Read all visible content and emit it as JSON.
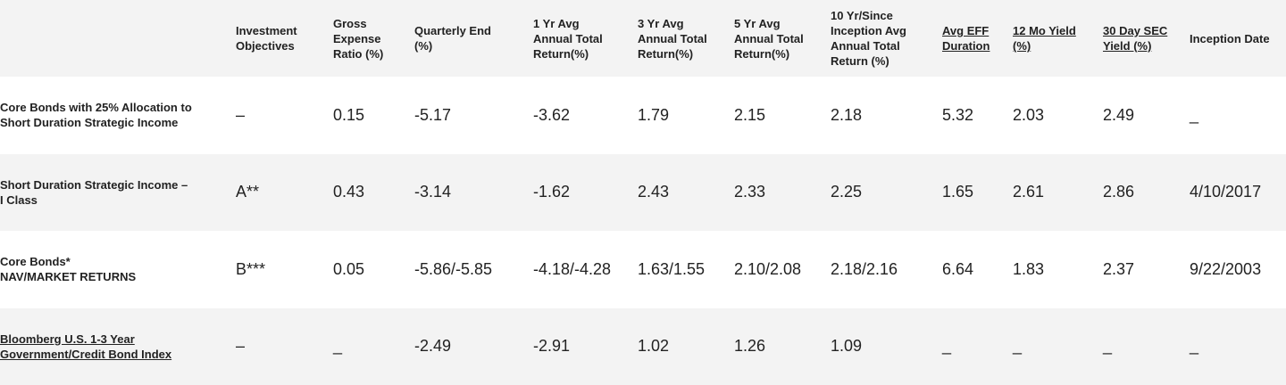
{
  "columns": [
    {
      "label_lines": [
        "Investment",
        "Objectives"
      ],
      "underline": false
    },
    {
      "label_lines": [
        "Gross",
        "Expense",
        "Ratio (%)"
      ],
      "underline": false
    },
    {
      "label_lines": [
        "Quarterly End",
        "(%)"
      ],
      "underline": false
    },
    {
      "label_lines": [
        "1 Yr Avg",
        "Annual Total",
        "Return(%)"
      ],
      "underline": false
    },
    {
      "label_lines": [
        "3 Yr Avg",
        "Annual Total",
        "Return(%)"
      ],
      "underline": false
    },
    {
      "label_lines": [
        "5 Yr Avg",
        "Annual Total",
        "Return(%)"
      ],
      "underline": false
    },
    {
      "label_lines": [
        "10 Yr/Since",
        "Inception Avg",
        "Annual Total",
        "Return (%)"
      ],
      "underline": false
    },
    {
      "label_lines": [
        "Avg EFF",
        "Duration"
      ],
      "underline": true
    },
    {
      "label_lines": [
        "12 Mo Yield",
        "(%)"
      ],
      "underline": true
    },
    {
      "label_lines": [
        "30 Day SEC",
        "Yield (%)"
      ],
      "underline": true
    },
    {
      "label_lines": [
        "Inception Date"
      ],
      "underline": false
    }
  ],
  "rows": [
    {
      "name_lines": [
        "Core Bonds with 25% Allocation to",
        "Short Duration Strategic Income"
      ],
      "underline": false,
      "values": [
        "–",
        "0.15",
        "-5.17",
        "-3.62",
        "1.79",
        "2.15",
        "2.18",
        "5.32",
        "2.03",
        "2.49",
        "_"
      ]
    },
    {
      "name_lines": [
        "Short Duration Strategic Income –",
        "I Class"
      ],
      "underline": false,
      "values": [
        "A**",
        "0.43",
        "-3.14",
        "-1.62",
        "2.43",
        "2.33",
        "2.25",
        "1.65",
        "2.61",
        "2.86",
        "4/10/2017"
      ]
    },
    {
      "name_lines": [
        "Core Bonds*",
        "NAV/MARKET RETURNS"
      ],
      "underline": false,
      "values": [
        "B***",
        "0.05",
        "-5.86/-5.85",
        "-4.18/-4.28",
        "1.63/1.55",
        "2.10/2.08",
        "2.18/2.16",
        "6.64",
        "1.83",
        "2.37",
        "9/22/2003"
      ]
    },
    {
      "name_lines": [
        "Bloomberg U.S. 1-3 Year",
        "Government/Credit Bond Index"
      ],
      "underline": true,
      "values": [
        "–",
        "_",
        "-2.49",
        "-2.91",
        "1.02",
        "1.26",
        "1.09",
        "_",
        "_",
        "_",
        "_"
      ]
    }
  ]
}
